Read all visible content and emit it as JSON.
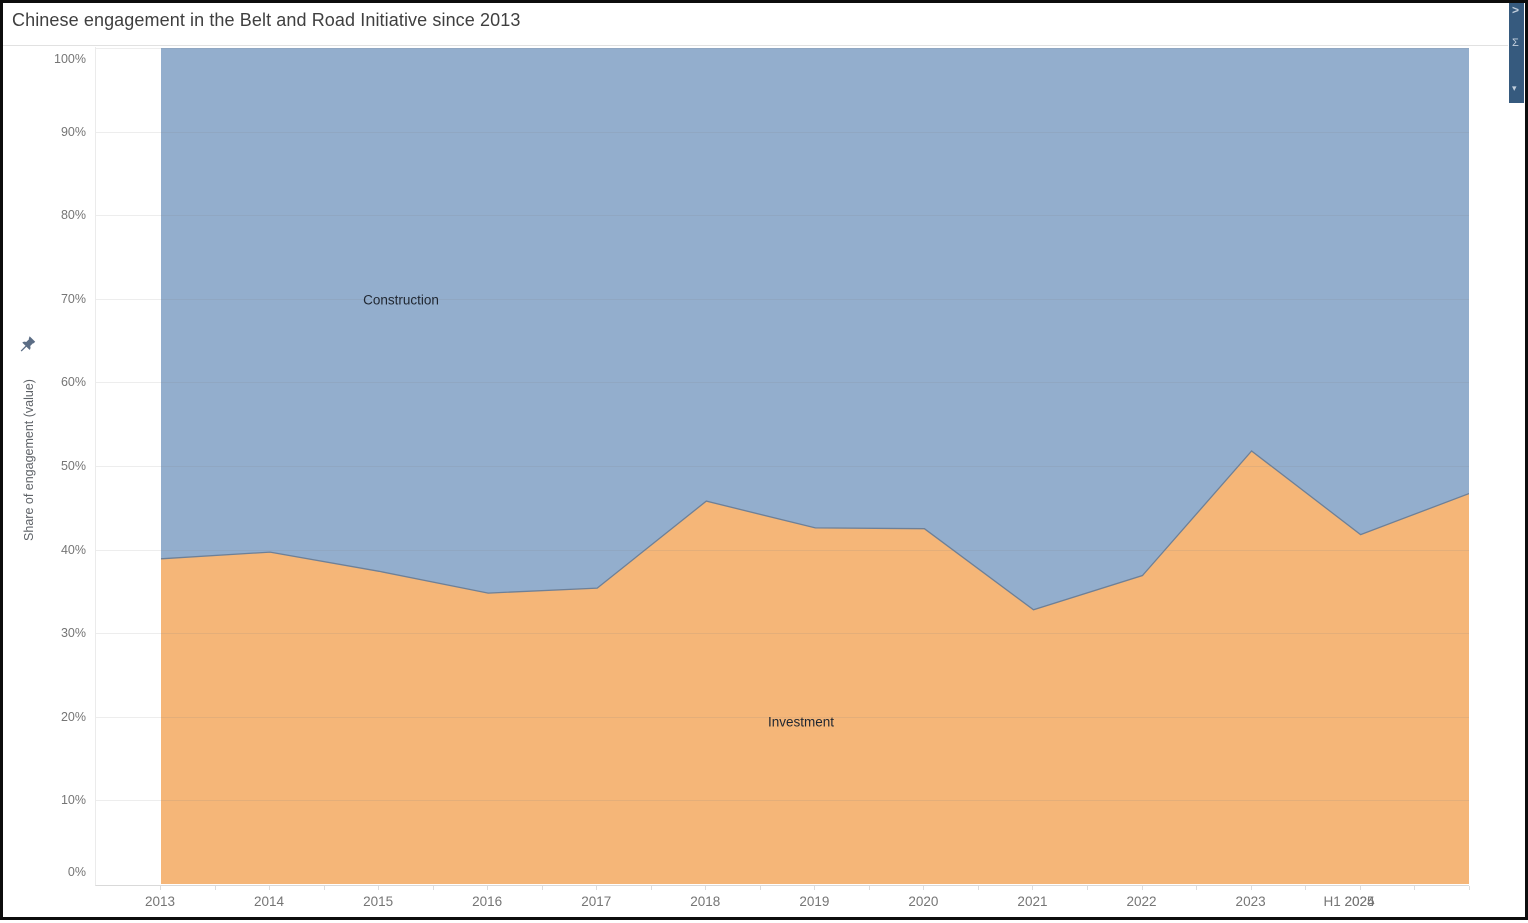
{
  "title": "Chinese engagement in the Belt and Road Initiative since 2013",
  "side_strip": {
    "glyphs": [
      ">",
      "Σ",
      "▾"
    ]
  },
  "colors": {
    "investment": "#f5b678",
    "construction": "#93aecd",
    "boundary_line": "#6e8097",
    "panel_strip": "#365a7e",
    "frame": "#0d0d0d"
  },
  "chart_data": {
    "type": "area",
    "variant": "100%-stacked",
    "title": "Chinese engagement in the Belt and Road Initiative since 2013",
    "xlabel": "",
    "ylabel": "Share of engagement (value)",
    "categories": [
      "2013",
      "2014",
      "2015",
      "2016",
      "2017",
      "2018",
      "2019",
      "2020",
      "2021",
      "2022",
      "2023",
      "2024",
      "H1 2025"
    ],
    "series": [
      {
        "name": "Investment",
        "color": "#f5b678",
        "values": [
          38.9,
          39.7,
          37.4,
          34.8,
          35.4,
          45.8,
          42.6,
          42.5,
          32.8,
          36.9,
          51.8,
          41.8,
          46.7
        ]
      },
      {
        "name": "Construction",
        "color": "#93aecd",
        "values": [
          61.1,
          60.3,
          62.6,
          65.2,
          64.6,
          54.2,
          57.4,
          57.5,
          67.2,
          63.1,
          48.2,
          58.2,
          53.3
        ]
      }
    ],
    "yticks": [
      "0%",
      "10%",
      "20%",
      "30%",
      "40%",
      "50%",
      "60%",
      "70%",
      "80%",
      "90%",
      "100%"
    ],
    "ylim": [
      0,
      100
    ],
    "grid": "horizontal",
    "legend": "area-labels",
    "boundary_line_color": "#6e8097"
  }
}
